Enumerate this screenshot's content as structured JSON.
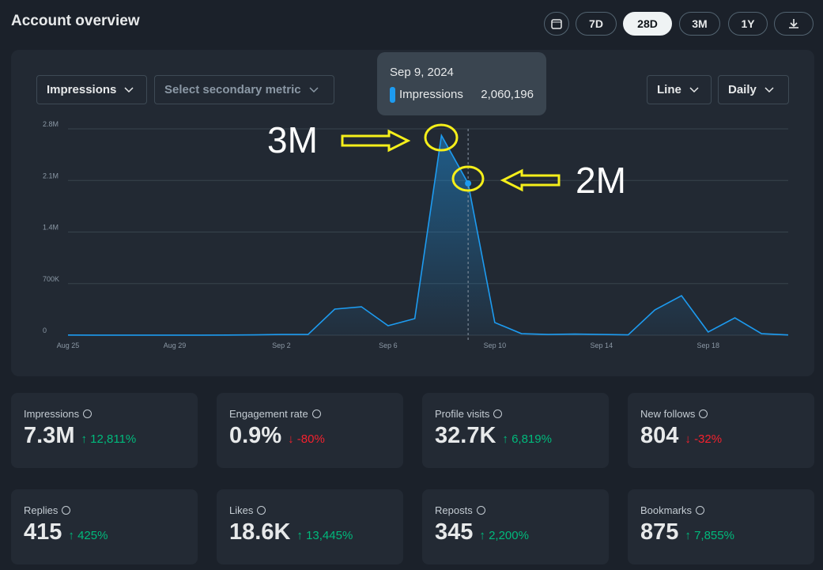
{
  "header": {
    "title": "Account overview",
    "ranges": [
      "7D",
      "28D",
      "3M",
      "1Y"
    ],
    "selected_range": "28D"
  },
  "controls": {
    "primary_metric": "Impressions",
    "secondary_metric": "Select secondary metric",
    "chart_style": "Line",
    "interval": "Daily"
  },
  "tooltip": {
    "date": "Sep 9, 2024",
    "metric": "Impressions",
    "value": "2,060,196"
  },
  "chart_data": {
    "type": "area",
    "categories": [
      "Aug 25",
      null,
      null,
      null,
      "Aug 29",
      null,
      null,
      null,
      "Sep 2",
      null,
      null,
      null,
      "Sep 6",
      null,
      null,
      null,
      "Sep 10",
      null,
      null,
      null,
      "Sep 14",
      null,
      null,
      null,
      "Sep 18",
      null,
      null,
      null
    ],
    "series": [
      {
        "name": "Impressions",
        "color": "#1d9bf0",
        "values": [
          2000,
          1000,
          1000,
          1000,
          1000,
          1000,
          2000,
          5000,
          10000,
          10000,
          354000,
          386000,
          129000,
          225000,
          2710000,
          2060196,
          172000,
          21000,
          10000,
          15000,
          10000,
          5000,
          343000,
          536000,
          43000,
          236000,
          21000,
          3000
        ]
      }
    ],
    "ylim": [
      0,
      2800000
    ],
    "yticks": [
      0,
      {
        "value": 700000,
        "label": "700K"
      },
      {
        "value": 1400000,
        "label": "1.4M"
      },
      {
        "value": 2100000,
        "label": "2.1M"
      },
      {
        "value": 2800000,
        "label": "2.8M"
      }
    ],
    "grid": true,
    "annotations": [
      "3M",
      "2M"
    ]
  },
  "cards": [
    {
      "label": "Impressions",
      "value": "7.3M",
      "change": "12,811%",
      "direction": "up"
    },
    {
      "label": "Engagement rate",
      "value": "0.9%",
      "change": "-80%",
      "direction": "down"
    },
    {
      "label": "Profile visits",
      "value": "32.7K",
      "change": "6,819%",
      "direction": "up"
    },
    {
      "label": "New follows",
      "value": "804",
      "change": "-32%",
      "direction": "down"
    },
    {
      "label": "Replies",
      "value": "415",
      "change": "425%",
      "direction": "up"
    },
    {
      "label": "Likes",
      "value": "18.6K",
      "change": "13,445%",
      "direction": "up"
    },
    {
      "label": "Reposts",
      "value": "345",
      "change": "2,200%",
      "direction": "up"
    },
    {
      "label": "Bookmarks",
      "value": "875",
      "change": "7,855%",
      "direction": "up"
    }
  ]
}
